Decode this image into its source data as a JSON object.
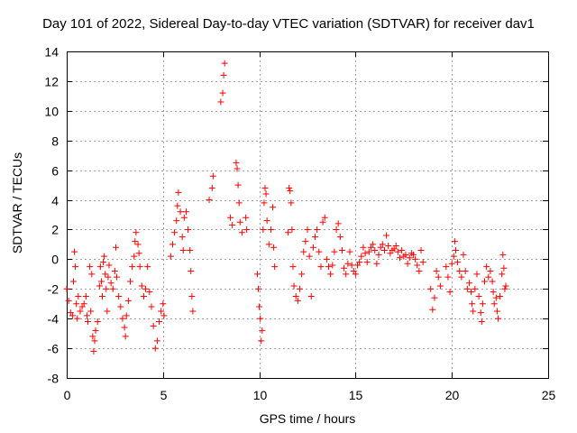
{
  "chart_data": {
    "type": "scatter",
    "title": "Day 101 of 2022, Sidereal Day-to-day VTEC variation (SDTVAR) for receiver dav1",
    "xlabel": "GPS time / hours",
    "ylabel": "SDTVAR / TECUs",
    "xlim": [
      0,
      25
    ],
    "ylim": [
      -8,
      14
    ],
    "xticks": [
      "0",
      "5",
      "10",
      "15",
      "20",
      "25"
    ],
    "yticks": [
      "-8",
      "-6",
      "-4",
      "-2",
      "0",
      "2",
      "4",
      "6",
      "8",
      "10",
      "12",
      "14"
    ],
    "grid": true,
    "marker": "+",
    "color": "#ff0000",
    "series": [
      {
        "name": "dav1",
        "points": [
          [
            0.0,
            -2.0
          ],
          [
            0.1,
            -2.8
          ],
          [
            0.2,
            -3.6
          ],
          [
            0.3,
            -3.8
          ],
          [
            0.35,
            -1.5
          ],
          [
            0.4,
            0.5
          ],
          [
            0.45,
            -0.5
          ],
          [
            0.5,
            -3.0
          ],
          [
            0.55,
            -4.0
          ],
          [
            0.6,
            -2.5
          ],
          [
            0.7,
            -3.5
          ],
          [
            0.8,
            -3.2
          ],
          [
            0.9,
            -3.0
          ],
          [
            1.0,
            -2.5
          ],
          [
            1.05,
            -3.8
          ],
          [
            1.1,
            -4.2
          ],
          [
            1.2,
            -0.5
          ],
          [
            1.25,
            -3.5
          ],
          [
            1.3,
            -1.0
          ],
          [
            1.35,
            -5.2
          ],
          [
            1.4,
            -6.2
          ],
          [
            1.45,
            -5.5
          ],
          [
            1.5,
            -4.8
          ],
          [
            1.6,
            -4.2
          ],
          [
            1.7,
            -1.8
          ],
          [
            1.75,
            -0.5
          ],
          [
            1.8,
            -1.5
          ],
          [
            1.85,
            -2.5
          ],
          [
            1.9,
            -0.2
          ],
          [
            1.95,
            0.2
          ],
          [
            2.0,
            -1.0
          ],
          [
            2.05,
            -2.0
          ],
          [
            2.1,
            -3.5
          ],
          [
            2.15,
            -1.2
          ],
          [
            2.2,
            -0.4
          ],
          [
            2.3,
            -1.6
          ],
          [
            2.4,
            -2.0
          ],
          [
            2.5,
            -0.8
          ],
          [
            2.55,
            0.8
          ],
          [
            2.6,
            -1.2
          ],
          [
            2.7,
            -2.5
          ],
          [
            2.8,
            -3.2
          ],
          [
            2.9,
            -4.0
          ],
          [
            3.0,
            -4.6
          ],
          [
            3.05,
            -5.2
          ],
          [
            3.1,
            -3.8
          ],
          [
            3.2,
            -2.8
          ],
          [
            3.3,
            -1.5
          ],
          [
            3.4,
            -0.5
          ],
          [
            3.5,
            0.2
          ],
          [
            3.55,
            1.2
          ],
          [
            3.6,
            1.8
          ],
          [
            3.7,
            1.0
          ],
          [
            3.75,
            0.4
          ],
          [
            3.8,
            -0.5
          ],
          [
            3.9,
            -1.8
          ],
          [
            4.0,
            -2.5
          ],
          [
            4.1,
            -2.0
          ],
          [
            4.2,
            -0.5
          ],
          [
            4.3,
            -2.2
          ],
          [
            4.4,
            -3.2
          ],
          [
            4.5,
            -4.5
          ],
          [
            4.6,
            -6.0
          ],
          [
            4.7,
            -5.5
          ],
          [
            4.8,
            -4.2
          ],
          [
            4.9,
            -3.5
          ],
          [
            5.0,
            -3.0
          ],
          [
            5.05,
            -3.8
          ],
          [
            5.4,
            0.2
          ],
          [
            5.5,
            1.0
          ],
          [
            5.6,
            1.8
          ],
          [
            5.7,
            2.6
          ],
          [
            5.75,
            3.6
          ],
          [
            5.8,
            4.5
          ],
          [
            5.9,
            3.2
          ],
          [
            6.0,
            1.5
          ],
          [
            6.05,
            0.6
          ],
          [
            6.1,
            2.8
          ],
          [
            6.2,
            3.2
          ],
          [
            6.3,
            2.0
          ],
          [
            6.4,
            0.6
          ],
          [
            6.45,
            -0.8
          ],
          [
            6.5,
            -2.5
          ],
          [
            6.55,
            -3.5
          ],
          [
            7.4,
            4.0
          ],
          [
            7.55,
            4.8
          ],
          [
            7.6,
            5.6
          ],
          [
            8.0,
            10.6
          ],
          [
            8.1,
            11.2
          ],
          [
            8.15,
            12.4
          ],
          [
            8.2,
            13.2
          ],
          [
            8.5,
            2.8
          ],
          [
            8.6,
            2.3
          ],
          [
            8.8,
            6.5
          ],
          [
            8.85,
            6.1
          ],
          [
            8.9,
            5.0
          ],
          [
            8.95,
            3.8
          ],
          [
            9.0,
            2.5
          ],
          [
            9.1,
            1.8
          ],
          [
            9.3,
            2.8
          ],
          [
            9.35,
            2.0
          ],
          [
            9.9,
            -1.0
          ],
          [
            9.95,
            -2.0
          ],
          [
            10.0,
            -3.2
          ],
          [
            10.05,
            -4.0
          ],
          [
            10.1,
            -5.5
          ],
          [
            10.15,
            -4.8
          ],
          [
            10.2,
            2.0
          ],
          [
            10.25,
            3.8
          ],
          [
            10.3,
            4.8
          ],
          [
            10.35,
            4.4
          ],
          [
            10.4,
            2.6
          ],
          [
            10.5,
            1.0
          ],
          [
            10.6,
            2.0
          ],
          [
            10.7,
            3.5
          ],
          [
            10.75,
            0.8
          ],
          [
            10.8,
            -0.5
          ],
          [
            11.5,
            1.8
          ],
          [
            11.55,
            4.8
          ],
          [
            11.6,
            4.6
          ],
          [
            11.65,
            3.8
          ],
          [
            11.7,
            2.0
          ],
          [
            11.75,
            -0.5
          ],
          [
            11.8,
            -1.8
          ],
          [
            11.9,
            -2.5
          ],
          [
            12.0,
            -2.8
          ],
          [
            12.1,
            -2.0
          ],
          [
            12.2,
            -1.0
          ],
          [
            12.3,
            0.5
          ],
          [
            12.4,
            1.2
          ],
          [
            12.5,
            2.0
          ],
          [
            12.6,
            0.2
          ],
          [
            12.7,
            -2.5
          ],
          [
            12.8,
            0.8
          ],
          [
            12.9,
            1.5
          ],
          [
            13.0,
            2.0
          ],
          [
            13.1,
            0.5
          ],
          [
            13.2,
            -0.5
          ],
          [
            13.3,
            2.5
          ],
          [
            13.4,
            2.8
          ],
          [
            13.5,
            0.0
          ],
          [
            13.6,
            -0.5
          ],
          [
            13.7,
            -1.0
          ],
          [
            13.8,
            -0.4
          ],
          [
            13.9,
            0.5
          ],
          [
            14.0,
            2.0
          ],
          [
            14.1,
            2.4
          ],
          [
            14.2,
            1.5
          ],
          [
            14.3,
            0.6
          ],
          [
            14.4,
            -0.6
          ],
          [
            14.5,
            -1.0
          ],
          [
            14.6,
            -0.3
          ],
          [
            14.7,
            0.5
          ],
          [
            14.8,
            -0.4
          ],
          [
            14.9,
            -0.8
          ],
          [
            15.0,
            -1.0
          ],
          [
            15.1,
            -0.4
          ],
          [
            15.2,
            -0.2
          ],
          [
            15.3,
            0.2
          ],
          [
            15.4,
            0.8
          ],
          [
            15.5,
            0.4
          ],
          [
            15.6,
            -0.2
          ],
          [
            15.7,
            0.5
          ],
          [
            15.8,
            0.8
          ],
          [
            15.9,
            1.0
          ],
          [
            16.0,
            0.6
          ],
          [
            16.1,
            -0.3
          ],
          [
            16.2,
            0.3
          ],
          [
            16.3,
            0.8
          ],
          [
            16.4,
            1.0
          ],
          [
            16.5,
            0.6
          ],
          [
            16.6,
            1.6
          ],
          [
            16.7,
            0.9
          ],
          [
            16.8,
            0.4
          ],
          [
            16.9,
            0.6
          ],
          [
            17.0,
            0.7
          ],
          [
            17.1,
            0.9
          ],
          [
            17.2,
            0.5
          ],
          [
            17.3,
            0.1
          ],
          [
            17.4,
            0.6
          ],
          [
            17.5,
            0.2
          ],
          [
            17.6,
            0.3
          ],
          [
            17.7,
            -0.3
          ],
          [
            17.8,
            0.1
          ],
          [
            17.9,
            0.4
          ],
          [
            18.0,
            0.3
          ],
          [
            18.1,
            0.0
          ],
          [
            18.2,
            -0.4
          ],
          [
            18.3,
            -0.8
          ],
          [
            18.4,
            0.6
          ],
          [
            18.5,
            -0.2
          ],
          [
            18.9,
            -2.0
          ],
          [
            19.0,
            -3.4
          ],
          [
            19.1,
            -2.6
          ],
          [
            19.2,
            -0.8
          ],
          [
            19.3,
            -1.2
          ],
          [
            19.4,
            -1.8
          ],
          [
            19.7,
            -0.5
          ],
          [
            19.8,
            -1.2
          ],
          [
            19.9,
            -2.2
          ],
          [
            20.0,
            -0.3
          ],
          [
            20.1,
            0.2
          ],
          [
            20.15,
            1.2
          ],
          [
            20.2,
            0.6
          ],
          [
            20.3,
            -0.2
          ],
          [
            20.4,
            -0.8
          ],
          [
            20.5,
            -1.2
          ],
          [
            20.6,
            0.3
          ],
          [
            20.7,
            -0.8
          ],
          [
            20.8,
            -2.0
          ],
          [
            20.9,
            -1.6
          ],
          [
            21.0,
            -2.2
          ],
          [
            21.05,
            -3.0
          ],
          [
            21.1,
            -3.5
          ],
          [
            21.2,
            -2.0
          ],
          [
            21.3,
            -1.0
          ],
          [
            21.4,
            -2.5
          ],
          [
            21.5,
            -3.6
          ],
          [
            21.55,
            -4.2
          ],
          [
            21.6,
            -3.0
          ],
          [
            21.7,
            -1.5
          ],
          [
            21.8,
            -0.5
          ],
          [
            21.9,
            -1.2
          ],
          [
            22.0,
            -0.8
          ],
          [
            22.1,
            -1.5
          ],
          [
            22.15,
            -2.2
          ],
          [
            22.2,
            -3.0
          ],
          [
            22.3,
            -2.6
          ],
          [
            22.35,
            -3.5
          ],
          [
            22.4,
            -4.0
          ],
          [
            22.5,
            -2.5
          ],
          [
            22.6,
            -1.0
          ],
          [
            22.65,
            0.3
          ],
          [
            22.7,
            -0.6
          ],
          [
            22.75,
            -2.0
          ],
          [
            22.8,
            -1.8
          ]
        ]
      }
    ]
  }
}
